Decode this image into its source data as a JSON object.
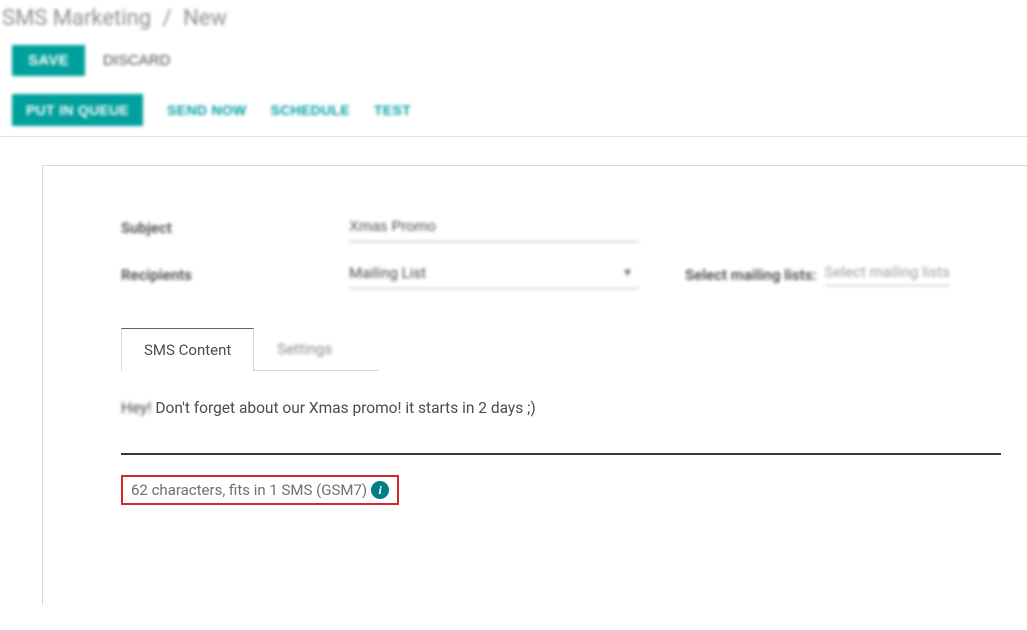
{
  "breadcrumb": {
    "root": "SMS Marketing",
    "current": "New"
  },
  "actions": {
    "save": "SAVE",
    "discard": "DISCARD"
  },
  "statusbar": {
    "put_in_queue": "PUT IN QUEUE",
    "send_now": "SEND NOW",
    "schedule": "SCHEDULE",
    "test": "TEST"
  },
  "form": {
    "subject_label": "Subject",
    "subject_value": "Xmas Promo",
    "recipients_label": "Recipients",
    "recipients_value": "Mailing List",
    "mailing_lists_label": "Select mailing lists:",
    "mailing_lists_placeholder": "Select mailing lists"
  },
  "tabs": {
    "content": "SMS Content",
    "settings": "Settings"
  },
  "sms": {
    "body_prefix": "Hey!",
    "body_rest": " Don't forget about our Xmas promo! it starts in 2 days ;)",
    "counter": "62 characters, fits in 1 SMS (GSM7)"
  },
  "colors": {
    "teal": "#00a09d",
    "highlight_border": "#d22a2a",
    "info_icon_bg": "#017e84"
  }
}
